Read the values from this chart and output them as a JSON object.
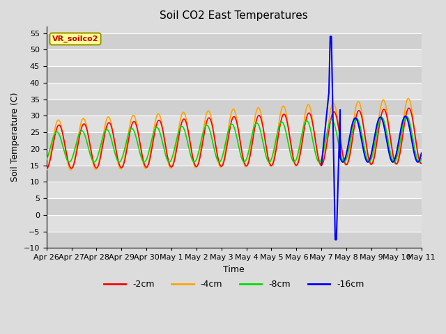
{
  "title": "Soil CO2 East Temperatures",
  "xlabel": "Time",
  "ylabel": "Soil Temperature (C)",
  "ylim": [
    -10,
    57
  ],
  "yticks": [
    -10,
    -5,
    0,
    5,
    10,
    15,
    20,
    25,
    30,
    35,
    40,
    45,
    50,
    55
  ],
  "background_color": "#dcdcdc",
  "plot_bg_color": "#dcdcdc",
  "line_colors": {
    "-2cm": "#ff0000",
    "-4cm": "#ffa500",
    "-8cm": "#00dd00",
    "-16cm": "#0000ff"
  },
  "legend_label": "VR_soilco2",
  "grid_color": "#ffffff",
  "tick_label_size": 8,
  "figsize": [
    6.4,
    4.8
  ],
  "dpi": 100
}
